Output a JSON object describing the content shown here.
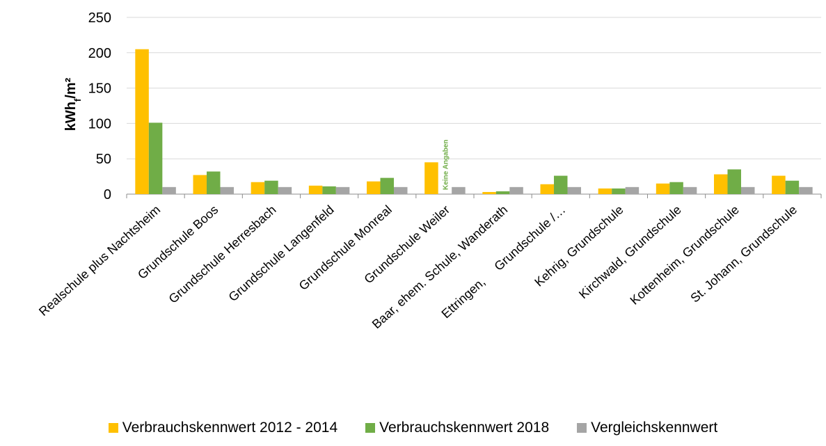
{
  "chart_data": {
    "type": "bar",
    "ylabel": "kWhₑ/m²",
    "ylabel_main": "kWh",
    "ylabel_sub": "f",
    "ylabel_unit": "/m²",
    "ylim": [
      0,
      250
    ],
    "yticks": [
      0,
      50,
      100,
      150,
      200,
      250
    ],
    "grid": true,
    "legend_position": "bottom",
    "categories": [
      "Realschule plus Nachtsheim",
      "Grundschule Boos",
      "Grundschule Herresbach",
      "Grundschule Langenfeld",
      "Grundschule Monreal",
      "Grundschule Weiler",
      "Baar, ehem. Schule, Wanderath",
      "Ettringen,     Grundschule /…",
      "Kehrig, Grundschule",
      "Kirchwald, Grundschule",
      "Kottenheim, Grundschule",
      "St. Johann, Grundschule"
    ],
    "series": [
      {
        "name": "Verbrauchskennwert 2012 - 2014",
        "color": "#FFC000",
        "values": [
          205,
          27,
          17,
          12,
          18,
          45,
          3,
          14,
          8,
          15,
          28,
          26
        ]
      },
      {
        "name": "Verbrauchskennwert 2018",
        "color": "#70AD47",
        "values": [
          101,
          32,
          19,
          11,
          23,
          null,
          4,
          26,
          8,
          17,
          35,
          19
        ]
      },
      {
        "name": "Vergleichskennwert",
        "color": "#A5A5A5",
        "values": [
          10,
          10,
          10,
          10,
          10,
          10,
          10,
          10,
          10,
          10,
          10,
          10
        ]
      }
    ],
    "annotations": [
      {
        "text": "Keine Angaben",
        "category_index": 5,
        "series_index": 1,
        "color": "#70AD47"
      }
    ]
  }
}
